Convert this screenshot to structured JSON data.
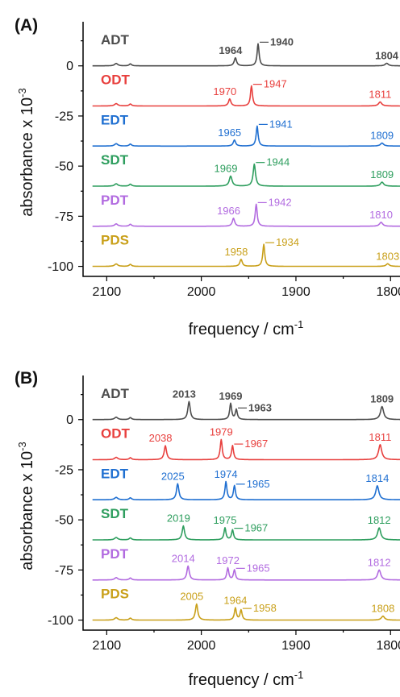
{
  "chart_data": [
    {
      "type": "line",
      "panel": "(A)",
      "xlabel": "frequency / cm",
      "xlabel_sup": "-1",
      "ylabel": "absorbance x 10",
      "ylabel_sup": "-3",
      "xlim": [
        2125,
        1790
      ],
      "ylim": [
        -105,
        22
      ],
      "xticks": [
        2100,
        2000,
        1900,
        1800
      ],
      "yticks": [
        0,
        -25,
        -50,
        -75,
        -100
      ],
      "grid": false,
      "series": [
        {
          "name": "ADT",
          "color": "#4d4d4d",
          "offset": 0,
          "bold_labels": true,
          "peaks": [
            {
              "x": 1964,
              "h": 4,
              "w": 3
            },
            {
              "x": 1940,
              "h": 11,
              "w": 2.5
            },
            {
              "x": 1804,
              "h": 1.3,
              "w": 4
            }
          ],
          "labels": [
            {
              "text": "1964",
              "x": 1964,
              "style": "above"
            },
            {
              "text": "1940",
              "x": 1940,
              "style": "leader"
            },
            {
              "text": "1804",
              "x": 1804,
              "style": "above"
            }
          ]
        },
        {
          "name": "ODT",
          "color": "#e8403e",
          "offset": -20,
          "bold_labels": false,
          "peaks": [
            {
              "x": 1970,
              "h": 3.5,
              "w": 3
            },
            {
              "x": 1947,
              "h": 10,
              "w": 2.5
            },
            {
              "x": 1811,
              "h": 2,
              "w": 4
            }
          ],
          "labels": [
            {
              "text": "1970",
              "x": 1970,
              "style": "above"
            },
            {
              "text": "1947",
              "x": 1947,
              "style": "leader"
            },
            {
              "text": "1811",
              "x": 1811,
              "style": "above"
            }
          ]
        },
        {
          "name": "EDT",
          "color": "#1f6fd1",
          "offset": -40,
          "bold_labels": false,
          "peaks": [
            {
              "x": 1965,
              "h": 3,
              "w": 3
            },
            {
              "x": 1941,
              "h": 10,
              "w": 2.5
            },
            {
              "x": 1809,
              "h": 1.5,
              "w": 4
            }
          ],
          "labels": [
            {
              "text": "1965",
              "x": 1965,
              "style": "above"
            },
            {
              "text": "1941",
              "x": 1941,
              "style": "leader"
            },
            {
              "text": "1809",
              "x": 1809,
              "style": "above"
            }
          ]
        },
        {
          "name": "SDT",
          "color": "#2e9e5e",
          "offset": -60,
          "bold_labels": false,
          "peaks": [
            {
              "x": 1969,
              "h": 5,
              "w": 3.5
            },
            {
              "x": 1944,
              "h": 11,
              "w": 3
            },
            {
              "x": 1809,
              "h": 2,
              "w": 4
            }
          ],
          "labels": [
            {
              "text": "1969",
              "x": 1969,
              "style": "above"
            },
            {
              "text": "1944",
              "x": 1944,
              "style": "leader"
            },
            {
              "text": "1809",
              "x": 1809,
              "style": "above"
            }
          ]
        },
        {
          "name": "PDT",
          "color": "#b26be0",
          "offset": -80,
          "bold_labels": false,
          "peaks": [
            {
              "x": 1966,
              "h": 4,
              "w": 3
            },
            {
              "x": 1942,
              "h": 11,
              "w": 2.5
            },
            {
              "x": 1810,
              "h": 2,
              "w": 4
            }
          ],
          "labels": [
            {
              "text": "1966",
              "x": 1966,
              "style": "above"
            },
            {
              "text": "1942",
              "x": 1942,
              "style": "leader"
            },
            {
              "text": "1810",
              "x": 1810,
              "style": "above"
            }
          ]
        },
        {
          "name": "PDS",
          "color": "#c9a01a",
          "offset": -100,
          "bold_labels": false,
          "peaks": [
            {
              "x": 1958,
              "h": 3.5,
              "w": 3
            },
            {
              "x": 1934,
              "h": 11,
              "w": 2.5
            },
            {
              "x": 1803,
              "h": 1.3,
              "w": 4
            }
          ],
          "labels": [
            {
              "text": "1958",
              "x": 1958,
              "style": "above"
            },
            {
              "text": "1934",
              "x": 1934,
              "style": "leader"
            },
            {
              "text": "1803",
              "x": 1803,
              "style": "above"
            }
          ]
        }
      ]
    },
    {
      "type": "line",
      "panel": "(B)",
      "xlabel": "frequency / cm",
      "xlabel_sup": "-1",
      "ylabel": "absorbance x 10",
      "ylabel_sup": "-3",
      "xlim": [
        2125,
        1790
      ],
      "ylim": [
        -105,
        22
      ],
      "xticks": [
        2100,
        2000,
        1900,
        1800
      ],
      "yticks": [
        0,
        -25,
        -50,
        -75,
        -100
      ],
      "grid": false,
      "series": [
        {
          "name": "ADT",
          "color": "#4d4d4d",
          "offset": 0,
          "bold_labels": true,
          "peaks": [
            {
              "x": 2013,
              "h": 9,
              "w": 3
            },
            {
              "x": 1969,
              "h": 8,
              "w": 2.5
            },
            {
              "x": 1963,
              "h": 5,
              "w": 2.5
            },
            {
              "x": 1809,
              "h": 6.5,
              "w": 4
            }
          ],
          "labels": [
            {
              "text": "2013",
              "x": 2013,
              "style": "above"
            },
            {
              "text": "1969",
              "x": 1969,
              "style": "above"
            },
            {
              "text": "1963",
              "x": 1963,
              "style": "leader"
            },
            {
              "text": "1809",
              "x": 1809,
              "style": "above"
            }
          ]
        },
        {
          "name": "ODT",
          "color": "#e8403e",
          "offset": -20,
          "bold_labels": false,
          "peaks": [
            {
              "x": 2038,
              "h": 7,
              "w": 3
            },
            {
              "x": 1979,
              "h": 10,
              "w": 2.5
            },
            {
              "x": 1967,
              "h": 7,
              "w": 2.5
            },
            {
              "x": 1811,
              "h": 7.5,
              "w": 4
            }
          ],
          "labels": [
            {
              "text": "2038",
              "x": 2038,
              "style": "above"
            },
            {
              "text": "1979",
              "x": 1979,
              "style": "above"
            },
            {
              "text": "1967",
              "x": 1967,
              "style": "leader"
            },
            {
              "text": "1811",
              "x": 1811,
              "style": "above"
            }
          ]
        },
        {
          "name": "EDT",
          "color": "#1f6fd1",
          "offset": -40,
          "bold_labels": false,
          "peaks": [
            {
              "x": 2025,
              "h": 8,
              "w": 3
            },
            {
              "x": 1974,
              "h": 9,
              "w": 2.5
            },
            {
              "x": 1965,
              "h": 7,
              "w": 2.5
            },
            {
              "x": 1814,
              "h": 7,
              "w": 4
            }
          ],
          "labels": [
            {
              "text": "2025",
              "x": 2025,
              "style": "above"
            },
            {
              "text": "1974",
              "x": 1974,
              "style": "above"
            },
            {
              "text": "1965",
              "x": 1965,
              "style": "leader"
            },
            {
              "text": "1814",
              "x": 1814,
              "style": "above"
            }
          ]
        },
        {
          "name": "SDT",
          "color": "#2e9e5e",
          "offset": -60,
          "bold_labels": false,
          "peaks": [
            {
              "x": 2019,
              "h": 7,
              "w": 3
            },
            {
              "x": 1975,
              "h": 6,
              "w": 2.5
            },
            {
              "x": 1967,
              "h": 5,
              "w": 2.5
            },
            {
              "x": 1812,
              "h": 6,
              "w": 4
            }
          ],
          "labels": [
            {
              "text": "2019",
              "x": 2019,
              "style": "above"
            },
            {
              "text": "1975",
              "x": 1975,
              "style": "above"
            },
            {
              "text": "1967",
              "x": 1967,
              "style": "leader"
            },
            {
              "text": "1812",
              "x": 1812,
              "style": "above"
            }
          ]
        },
        {
          "name": "PDT",
          "color": "#b26be0",
          "offset": -80,
          "bold_labels": false,
          "peaks": [
            {
              "x": 2014,
              "h": 7,
              "w": 3
            },
            {
              "x": 1972,
              "h": 6,
              "w": 2.5
            },
            {
              "x": 1965,
              "h": 5,
              "w": 2.5
            },
            {
              "x": 1812,
              "h": 5,
              "w": 4
            }
          ],
          "labels": [
            {
              "text": "2014",
              "x": 2014,
              "style": "above"
            },
            {
              "text": "1972",
              "x": 1972,
              "style": "above"
            },
            {
              "text": "1965",
              "x": 1965,
              "style": "leader"
            },
            {
              "text": "1812",
              "x": 1812,
              "style": "above"
            }
          ]
        },
        {
          "name": "PDS",
          "color": "#c9a01a",
          "offset": -100,
          "bold_labels": false,
          "peaks": [
            {
              "x": 2005,
              "h": 8,
              "w": 3
            },
            {
              "x": 1964,
              "h": 6,
              "w": 2.5
            },
            {
              "x": 1958,
              "h": 5,
              "w": 2.5
            },
            {
              "x": 1808,
              "h": 2,
              "w": 4
            }
          ],
          "labels": [
            {
              "text": "2005",
              "x": 2005,
              "style": "above"
            },
            {
              "text": "1964",
              "x": 1964,
              "style": "above"
            },
            {
              "text": "1958",
              "x": 1958,
              "style": "leader"
            },
            {
              "text": "1808",
              "x": 1808,
              "style": "above"
            }
          ]
        }
      ]
    }
  ]
}
